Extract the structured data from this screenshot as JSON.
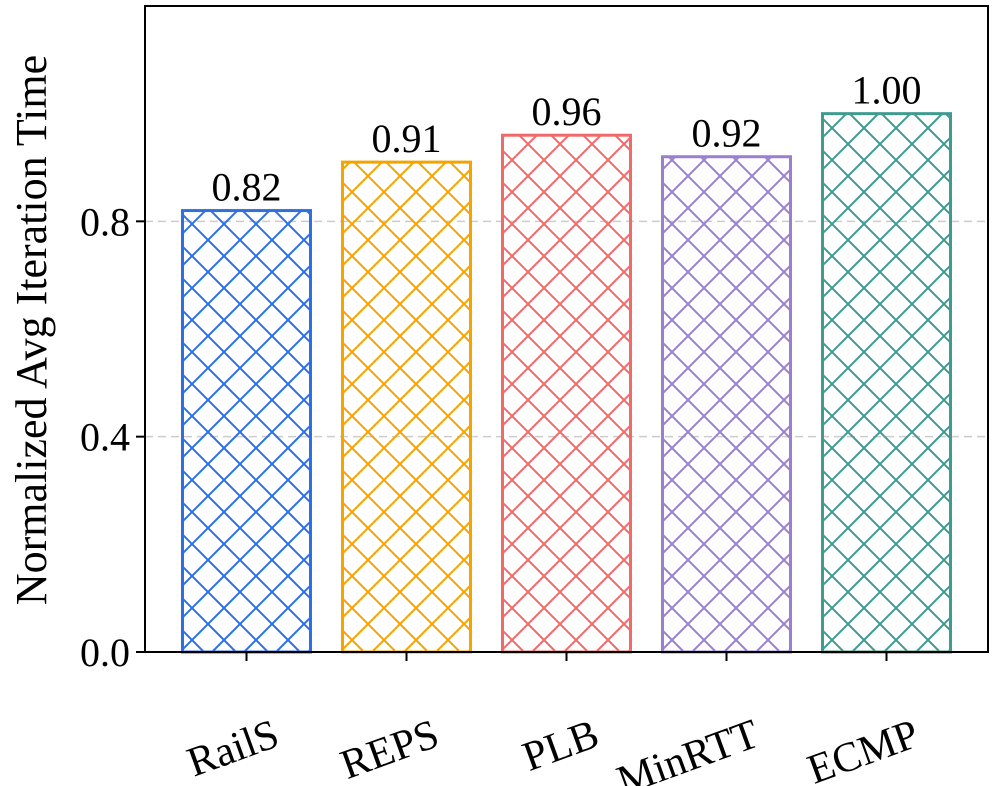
{
  "chart_data": {
    "type": "bar",
    "title": "",
    "xlabel": "",
    "ylabel": "Normalized Avg Iteration Time",
    "ylim": [
      0,
      1.2
    ],
    "yticks": [
      0.0,
      0.4,
      0.8
    ],
    "ytick_labels": [
      "0.0",
      "0.4",
      "0.8"
    ],
    "grid": "horizontal-dashed",
    "categories": [
      "RailS",
      "REPS",
      "PLB",
      "MinRTT",
      "ECMP"
    ],
    "values": [
      0.82,
      0.91,
      0.96,
      0.92,
      1.0
    ],
    "value_labels": [
      "0.82",
      "0.91",
      "0.96",
      "0.92",
      "1.00"
    ],
    "colors": [
      "#2f6fe4",
      "#f4a300",
      "#f06a6a",
      "#9b7fcf",
      "#3f9a8f"
    ],
    "hatch": "cross-diagonal"
  }
}
